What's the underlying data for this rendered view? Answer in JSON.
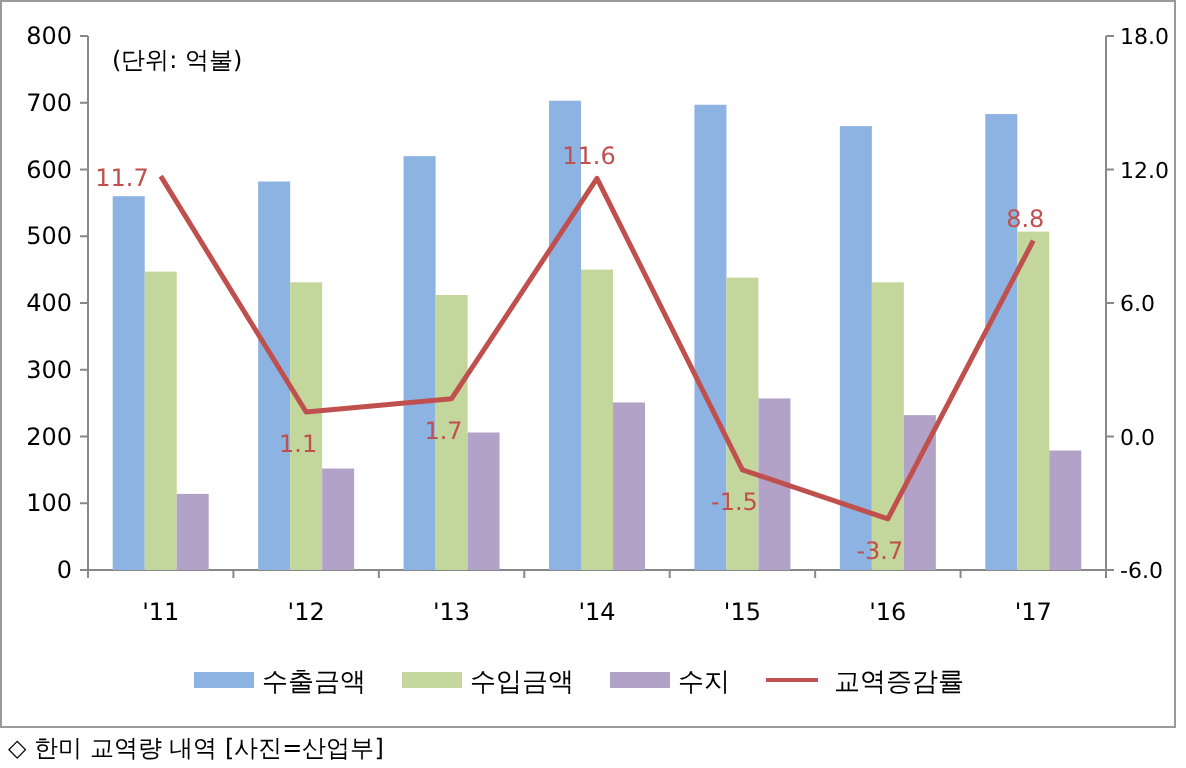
{
  "chart_data": {
    "type": "bar",
    "categories": [
      "'11",
      "'12",
      "'13",
      "'14",
      "'15",
      "'16",
      "'17"
    ],
    "series": [
      {
        "name": "수출금액",
        "color": "#8db3e2",
        "values": [
          560,
          582,
          620,
          703,
          697,
          665,
          683
        ]
      },
      {
        "name": "수입금액",
        "color": "#c3d69b",
        "values": [
          447,
          431,
          412,
          450,
          438,
          431,
          507
        ]
      },
      {
        "name": "수지",
        "color": "#b3a2c7",
        "values": [
          114,
          152,
          206,
          251,
          257,
          232,
          179
        ]
      },
      {
        "name": "교역증감률",
        "type": "line",
        "axis": "y2",
        "color": "#c0504d",
        "values": [
          11.7,
          1.1,
          1.7,
          11.6,
          -1.5,
          -3.7,
          8.8
        ],
        "data_labels": true
      }
    ],
    "ylim": [
      0,
      800
    ],
    "yticks": [
      0,
      100,
      200,
      300,
      400,
      500,
      600,
      700,
      800
    ],
    "y2lim": [
      -6,
      18
    ],
    "y2ticks": [
      {
        "value": -6,
        "label": "-6.0"
      },
      {
        "value": 0,
        "label": "0.0"
      },
      {
        "value": 6,
        "label": "6.0"
      },
      {
        "value": 12,
        "label": "12.0"
      },
      {
        "value": 18,
        "label": "18.0"
      }
    ],
    "grid": false,
    "legend": "bottom",
    "annotations": [
      "(단위: 억불)",
      "◇ 한미 교역량 내역 [사진=산업부]"
    ]
  }
}
